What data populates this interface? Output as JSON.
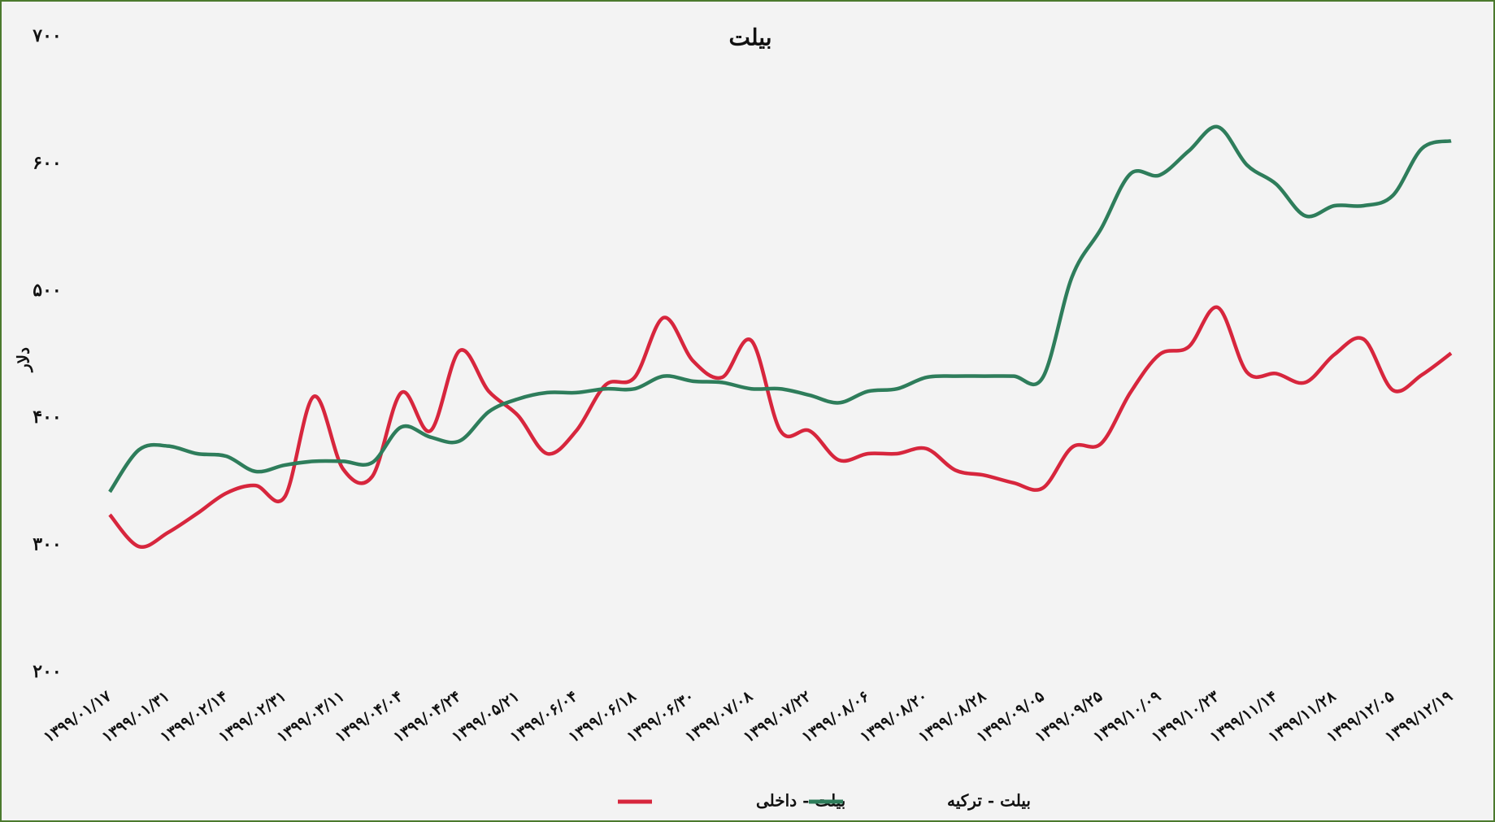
{
  "chart_data": {
    "type": "line",
    "title": "بیلت",
    "y_label": "دلار",
    "categories": [
      "۱۳۹۹/۰۱/۱۷",
      null,
      "۱۳۹۹/۰۱/۳۱",
      null,
      "۱۳۹۹/۰۲/۱۴",
      null,
      "۱۳۹۹/۰۲/۳۱",
      null,
      "۱۳۹۹/۰۳/۱۱",
      null,
      "۱۳۹۹/۰۴/۰۴",
      null,
      "۱۳۹۹/۰۴/۲۴",
      null,
      "۱۳۹۹/۰۵/۲۱",
      null,
      "۱۳۹۹/۰۶/۰۴",
      null,
      "۱۳۹۹/۰۶/۱۸",
      null,
      "۱۳۹۹/۰۶/۳۰",
      null,
      "۱۳۹۹/۰۷/۰۸",
      null,
      "۱۳۹۹/۰۷/۲۲",
      null,
      "۱۳۹۹/۰۸/۰۶",
      null,
      "۱۳۹۹/۰۸/۲۰",
      null,
      "۱۳۹۹/۰۸/۲۸",
      null,
      "۱۳۹۹/۰۹/۰۵",
      null,
      "۱۳۹۹/۰۹/۲۵",
      null,
      "۱۳۹۹/۱۰/۰۹",
      null,
      "۱۳۹۹/۱۰/۲۳",
      null,
      "۱۳۹۹/۱۱/۱۴",
      null,
      "۱۳۹۹/۱۱/۲۸",
      null,
      "۱۳۹۹/۱۲/۰۵",
      null,
      "۱۳۹۹/۱۲/۱۹"
    ],
    "series": [
      {
        "name": "بیلت - داخلی",
        "color": "#d7263d",
        "values": [
          324,
          299,
          310,
          325,
          341,
          347,
          338,
          417,
          360,
          354,
          420,
          390,
          453,
          421,
          402,
          372,
          390,
          426,
          432,
          479,
          445,
          432,
          461,
          390,
          390,
          367,
          372,
          372,
          376,
          359,
          355,
          349,
          345,
          377,
          380,
          420,
          450,
          456,
          487,
          436,
          435,
          428,
          450,
          462,
          422,
          434,
          451
        ]
      },
      {
        "name": "بیلت - ترکیه",
        "color": "#2e7d5b",
        "values": [
          342,
          375,
          378,
          372,
          370,
          358,
          363,
          366,
          366,
          365,
          393,
          385,
          382,
          405,
          415,
          420,
          420,
          423,
          423,
          433,
          429,
          428,
          423,
          423,
          418,
          412,
          421,
          423,
          432,
          433,
          433,
          433,
          432,
          511,
          549,
          592,
          591,
          610,
          629,
          599,
          584,
          559,
          567,
          567,
          575,
          612,
          618
        ]
      }
    ],
    "ylim": [
      200,
      700
    ],
    "yticks": [
      {
        "value": 200,
        "label": "۲۰۰"
      },
      {
        "value": 300,
        "label": "۳۰۰"
      },
      {
        "value": 400,
        "label": "۴۰۰"
      },
      {
        "value": 500,
        "label": "۵۰۰"
      },
      {
        "value": 600,
        "label": "۶۰۰"
      },
      {
        "value": 700,
        "label": "۷۰۰"
      }
    ],
    "legend": "bottom"
  }
}
